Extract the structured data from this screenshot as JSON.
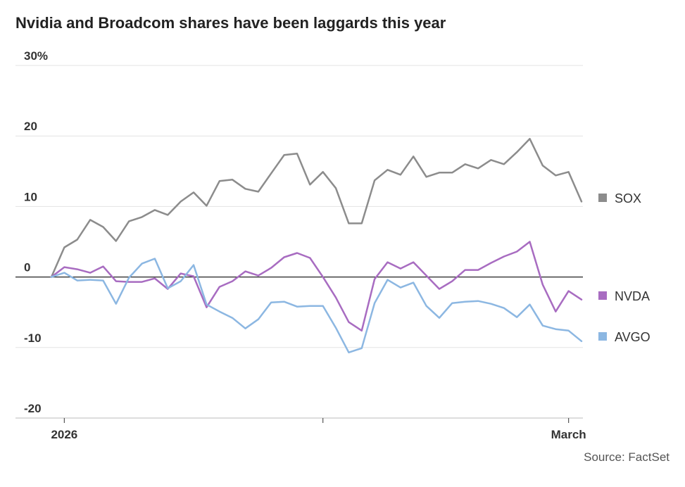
{
  "header": {
    "title": "Nvidia and Broadcom shares have been laggards this year"
  },
  "footer": {
    "source": "Source: FactSet"
  },
  "chart_data": {
    "type": "line",
    "title": "Nvidia and Broadcom shares have been laggards this year",
    "xlabel": "",
    "ylabel": "",
    "ylim": [
      -20,
      30
    ],
    "yticks": [
      {
        "value": 30,
        "label": "30%"
      },
      {
        "value": 20,
        "label": "20"
      },
      {
        "value": 10,
        "label": "10"
      },
      {
        "value": 0,
        "label": "0"
      },
      {
        "value": -10,
        "label": "-10"
      },
      {
        "value": -20,
        "label": "-20"
      }
    ],
    "xticks": [
      {
        "index": 1,
        "label": "2026"
      },
      {
        "index": 21,
        "label": ""
      },
      {
        "index": 40,
        "label": "March"
      }
    ],
    "grid": true,
    "legend": "right",
    "series": [
      {
        "name": "SOX",
        "color": "#8c8c8c",
        "values": [
          0,
          4.2,
          5.3,
          8.1,
          7.1,
          5.1,
          7.9,
          8.5,
          9.5,
          8.8,
          10.7,
          12.0,
          10.1,
          13.6,
          13.8,
          12.5,
          12.1,
          14.7,
          17.3,
          17.5,
          13.1,
          14.9,
          12.6,
          7.6,
          7.6,
          13.7,
          15.2,
          14.5,
          17.1,
          14.2,
          14.8,
          14.8,
          16.0,
          15.4,
          16.6,
          16.0,
          17.7,
          19.6,
          15.8,
          14.4,
          14.9,
          10.7
        ]
      },
      {
        "name": "NVDA",
        "color": "#a86cc1",
        "values": [
          0,
          1.4,
          1.1,
          0.6,
          1.5,
          -0.6,
          -0.7,
          -0.7,
          -0.2,
          -1.7,
          0.5,
          0.1,
          -4.3,
          -1.4,
          -0.6,
          0.8,
          0.2,
          1.3,
          2.8,
          3.4,
          2.7,
          0.0,
          -2.9,
          -6.4,
          -7.6,
          -0.3,
          2.1,
          1.2,
          2.1,
          0.2,
          -1.7,
          -0.6,
          1.0,
          1.0,
          2.0,
          2.9,
          3.6,
          5.0,
          -1.1,
          -4.9,
          -2.0,
          -3.2
        ]
      },
      {
        "name": "AVGO",
        "color": "#8cb7e2",
        "values": [
          0,
          0.6,
          -0.5,
          -0.4,
          -0.5,
          -3.8,
          -0.1,
          1.9,
          2.6,
          -1.6,
          -0.6,
          1.7,
          -3.9,
          -4.9,
          -5.8,
          -7.3,
          -6.0,
          -3.6,
          -3.5,
          -4.2,
          -4.1,
          -4.1,
          -7.2,
          -10.7,
          -10.1,
          -3.7,
          -0.4,
          -1.5,
          -0.8,
          -4.1,
          -5.8,
          -3.7,
          -3.5,
          -3.4,
          -3.8,
          -4.4,
          -5.7,
          -3.9,
          -6.9,
          -7.4,
          -7.6,
          -9.1
        ]
      }
    ]
  }
}
